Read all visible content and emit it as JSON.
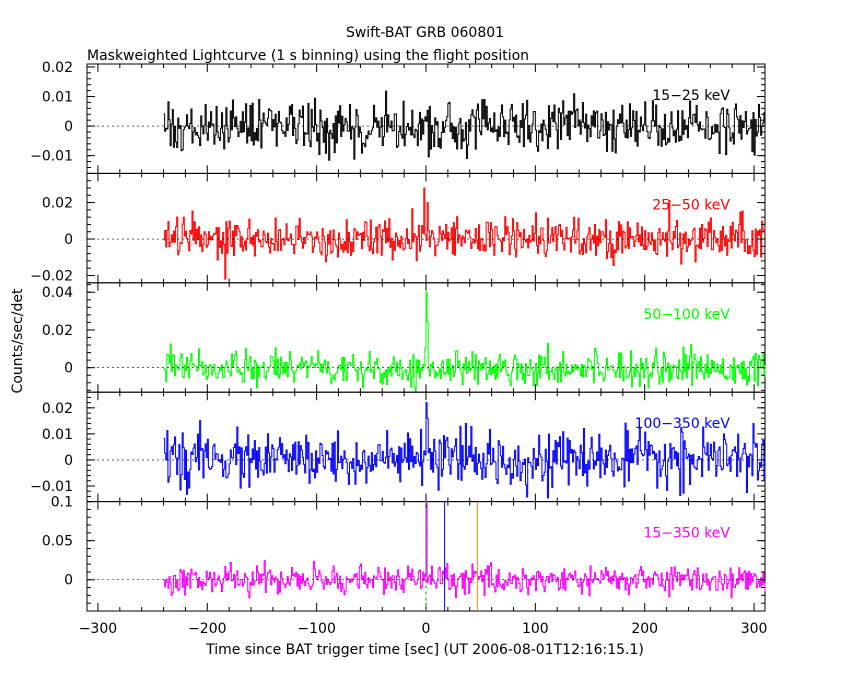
{
  "title": "Swift-BAT GRB 060801",
  "subtitle": "Maskweighted Lightcurve (1 s binning) using the flight position",
  "chart_data": {
    "type": "line",
    "title": "Swift-BAT GRB 060801",
    "subtitle": "Maskweighted Lightcurve (1 s binning) using the flight position",
    "xlabel": "Time since BAT trigger time [sec] (UT 2006-08-01T12:16:15.1)",
    "ylabel": "Counts/sec/det",
    "xlim": [
      -310,
      310
    ],
    "x_ticks": [
      "−300",
      "−200",
      "−100",
      "0",
      "100",
      "200",
      "300"
    ],
    "x_tick_values": [
      -300,
      -200,
      -100,
      0,
      100,
      200,
      300
    ],
    "data_range": [
      -240,
      310
    ],
    "panels": [
      {
        "band": "15−25 keV",
        "color": "#000000",
        "ylim": [
          -0.016,
          0.021
        ],
        "y_ticks": [
          -0.01,
          0,
          0.01,
          0.02
        ],
        "y_tick_labels": [
          "−0.01",
          "0",
          "0.01",
          "0.02"
        ],
        "noise_sigma": 0.0045,
        "peaks": []
      },
      {
        "band": "25−50 keV",
        "color": "#ff0000",
        "ylim": [
          -0.024,
          0.036
        ],
        "y_ticks": [
          -0.02,
          0,
          0.02
        ],
        "y_tick_labels": [
          "−0.02",
          "0",
          "0.02"
        ],
        "noise_sigma": 0.0055,
        "peaks": [
          {
            "t": -2,
            "value": 0.028
          },
          {
            "t": 1,
            "value": 0.02
          },
          {
            "t": -184,
            "value": -0.022
          }
        ]
      },
      {
        "band": "50−100 keV",
        "color": "#00ff00",
        "ylim": [
          -0.013,
          0.045
        ],
        "y_ticks": [
          0,
          0.02,
          0.04
        ],
        "y_tick_labels": [
          "0",
          "0.02",
          "0.04"
        ],
        "noise_sigma": 0.0045,
        "peaks": [
          {
            "t": 0,
            "value": 0.04
          },
          {
            "t": 1,
            "value": 0.024
          }
        ]
      },
      {
        "band": "100−350 keV",
        "color": "#0000ff",
        "ylim": [
          -0.016,
          0.026
        ],
        "y_ticks": [
          -0.01,
          0,
          0.01,
          0.02
        ],
        "y_tick_labels": [
          "−0.01",
          "0",
          "0.01",
          "0.02"
        ],
        "noise_sigma": 0.005,
        "peaks": [
          {
            "t": 0,
            "value": 0.022
          },
          {
            "t": 1,
            "value": 0.016
          }
        ]
      },
      {
        "band": "15−350 keV",
        "color": "#ff00ff",
        "ylim": [
          -0.04,
          0.1
        ],
        "y_ticks": [
          0,
          0.05,
          0.1
        ],
        "y_tick_labels": [
          "0",
          "0.05",
          "0.1"
        ],
        "noise_sigma": 0.009,
        "peaks": [
          {
            "t": 0,
            "value": 0.1
          }
        ]
      }
    ],
    "markers": [
      {
        "t": 0,
        "color": "#00aa00",
        "style": "dashed"
      },
      {
        "t": 17,
        "color": "#0000ff",
        "style": "solid"
      },
      {
        "t": 47,
        "color": "#ff8800",
        "style": "solid"
      }
    ],
    "grid": false,
    "legend": "none (band labels inside each panel, top-right)"
  }
}
